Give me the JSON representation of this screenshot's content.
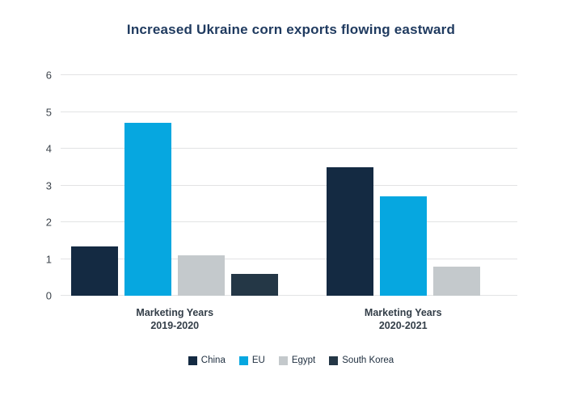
{
  "title": "Increased Ukraine corn exports flowing eastward",
  "chart_data": {
    "type": "bar",
    "title": "Increased Ukraine corn exports flowing eastward",
    "categories": [
      "Marketing Years\n2019-2020",
      "Marketing Years\n2020-2021"
    ],
    "series": [
      {
        "name": "China",
        "color": "#142a42",
        "values": [
          1.35,
          3.5
        ]
      },
      {
        "name": "EU",
        "color": "#06a7e0",
        "values": [
          4.7,
          2.7
        ]
      },
      {
        "name": "Egypt",
        "color": "#c4c9cc",
        "values": [
          1.1,
          0.8
        ]
      },
      {
        "name": "South Korea",
        "color": "#243746",
        "values": [
          0.6,
          0
        ]
      }
    ],
    "xlabel": "",
    "ylabel": "",
    "ylim": [
      0,
      6
    ],
    "yticks": [
      0,
      1,
      2,
      3,
      4,
      5,
      6
    ],
    "grid": "horizontal",
    "legend_position": "bottom",
    "note": "zero-value bars are not drawn"
  },
  "colors": {
    "title_text": "#1f3a5f",
    "axis_text": "#3d444c",
    "category_text": "#333e48",
    "legend_text": "#1d2d3e",
    "gridline": "#e2e3e4",
    "background": "#ffffff"
  }
}
